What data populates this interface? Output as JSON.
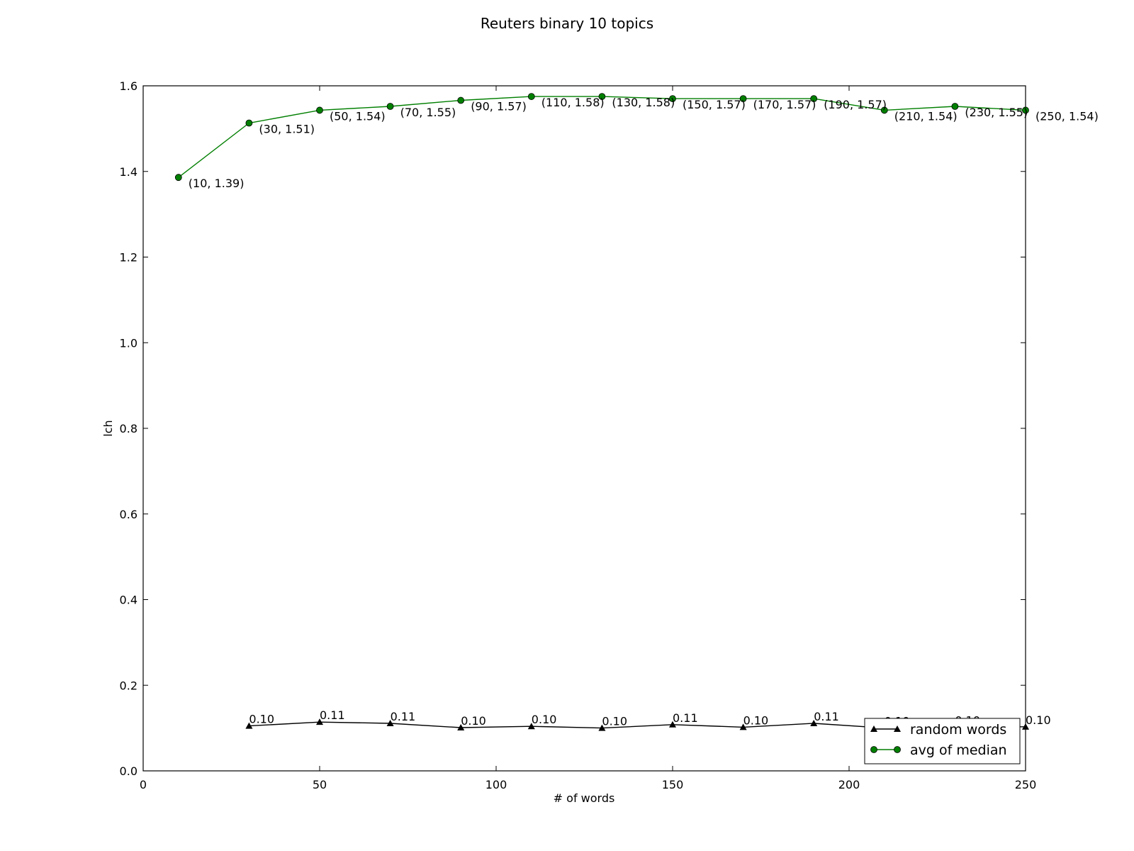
{
  "chart_data": {
    "type": "line",
    "title": "Reuters binary  10 topics",
    "xlabel": "# of words",
    "ylabel": "lch",
    "xlim": [
      0,
      250
    ],
    "ylim": [
      0.0,
      1.6
    ],
    "xticks": [
      0,
      50,
      100,
      150,
      200,
      250
    ],
    "xtick_labels": [
      "0",
      "50",
      "100",
      "150",
      "200",
      "250"
    ],
    "yticks": [
      0.0,
      0.2,
      0.4,
      0.6,
      0.8,
      1.0,
      1.2,
      1.4,
      1.6
    ],
    "ytick_labels": [
      "0.0",
      "0.2",
      "0.4",
      "0.6",
      "0.8",
      "1.0",
      "1.2",
      "1.4",
      "1.6"
    ],
    "grid": false,
    "legend_position": "lower-right",
    "series": [
      {
        "name": "random words",
        "color": "#000000",
        "marker": "triangle",
        "x": [
          30,
          50,
          70,
          90,
          110,
          130,
          150,
          170,
          190,
          210,
          230,
          250
        ],
        "y": [
          0.105,
          0.114,
          0.111,
          0.101,
          0.104,
          0.1,
          0.108,
          0.102,
          0.111,
          0.1,
          0.102,
          0.103
        ],
        "labels": [
          "0.10",
          "0.11",
          "0.11",
          "0.10",
          "0.10",
          "0.10",
          "0.11",
          "0.10",
          "0.11",
          "0.10",
          "0.10",
          "0.10"
        ]
      },
      {
        "name": "avg of median",
        "color": "#007f00",
        "marker": "circle",
        "x": [
          10,
          30,
          50,
          70,
          90,
          110,
          130,
          150,
          170,
          190,
          210,
          230,
          250
        ],
        "y": [
          1.386,
          1.513,
          1.543,
          1.552,
          1.566,
          1.575,
          1.575,
          1.57,
          1.57,
          1.57,
          1.543,
          1.552,
          1.543
        ],
        "labels": [
          "(10, 1.39)",
          "(30, 1.51)",
          "(50, 1.54)",
          "(70, 1.55)",
          "(90, 1.57)",
          "(110, 1.58)",
          "(130, 1.58)",
          "(150, 1.57)",
          "(170, 1.57)",
          "(190, 1.57)",
          "(210, 1.54)",
          "(230, 1.55)",
          "(250, 1.54)"
        ]
      }
    ]
  }
}
